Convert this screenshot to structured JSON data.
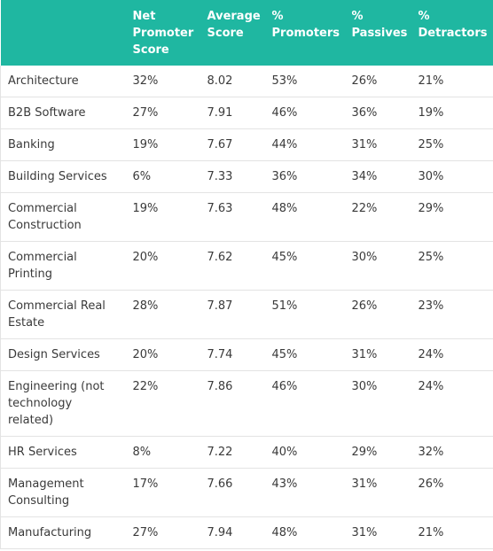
{
  "columns": [
    "",
    "Net Promoter Score",
    "Average Score",
    "% Promoters",
    "% Passives",
    "% Detractors"
  ],
  "rows": [
    [
      "Architecture",
      "32%",
      "8.02",
      "53%",
      "26%",
      "21%"
    ],
    [
      "B2B Software",
      "27%",
      "7.91",
      "46%",
      "36%",
      "19%"
    ],
    [
      "Banking",
      "19%",
      "7.67",
      "44%",
      "31%",
      "25%"
    ],
    [
      "Building Services",
      "6%",
      "7.33",
      "36%",
      "34%",
      "30%"
    ],
    [
      "Commercial Construction",
      "19%",
      "7.63",
      "48%",
      "22%",
      "29%"
    ],
    [
      "Commercial Printing",
      "20%",
      "7.62",
      "45%",
      "30%",
      "25%"
    ],
    [
      "Commercial Real Estate",
      "28%",
      "7.87",
      "51%",
      "26%",
      "23%"
    ],
    [
      "Design Services",
      "20%",
      "7.74",
      "45%",
      "31%",
      "24%"
    ],
    [
      "Engineering (not technology related)",
      "22%",
      "7.86",
      "46%",
      "30%",
      "24%"
    ],
    [
      "HR Services",
      "8%",
      "7.22",
      "40%",
      "29%",
      "32%"
    ],
    [
      "Management Consulting",
      "17%",
      "7.66",
      "43%",
      "31%",
      "26%"
    ],
    [
      "Manufacturing",
      "27%",
      "7.94",
      "48%",
      "31%",
      "21%"
    ]
  ],
  "colors": {
    "header_bg": "#1fb7a1",
    "header_text": "#ffffff",
    "body_text": "#3a3a3a",
    "border": "#e3e3e3"
  }
}
